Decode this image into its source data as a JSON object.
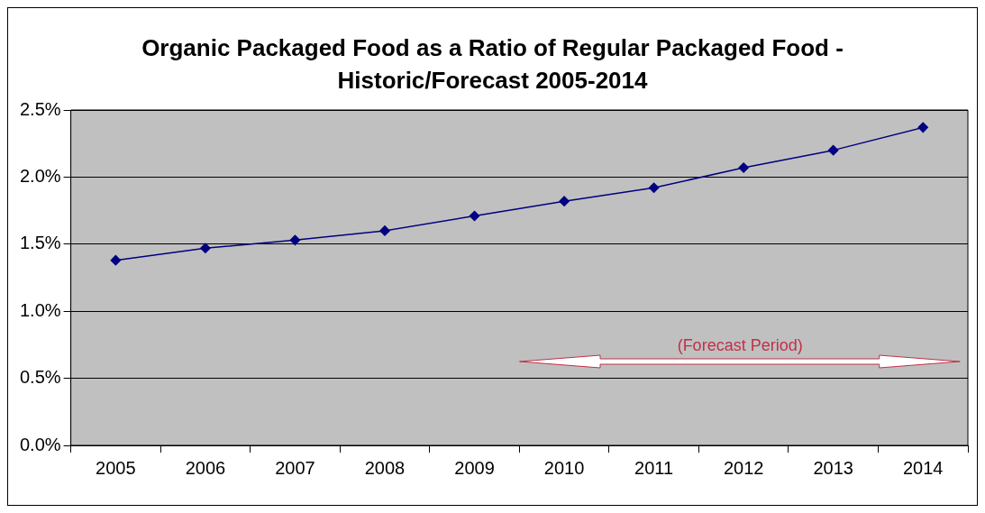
{
  "chart_data": {
    "type": "line",
    "title": "Organic Packaged Food as a Ratio of Regular Packaged Food - Historic/Forecast 2005-2014",
    "categories": [
      "2005",
      "2006",
      "2007",
      "2008",
      "2009",
      "2010",
      "2011",
      "2012",
      "2013",
      "2014"
    ],
    "series": [
      {
        "color": "#000080",
        "values": [
          1.38,
          1.47,
          1.53,
          1.6,
          1.71,
          1.82,
          1.92,
          2.07,
          2.2,
          2.37
        ]
      }
    ],
    "ylim": [
      0,
      2.5
    ],
    "yticks": [
      {
        "value": 0,
        "label": "0.0%"
      },
      {
        "value": 0.5,
        "label": "0.5%"
      },
      {
        "value": 1,
        "label": "1.0%"
      },
      {
        "value": 1.5,
        "label": "1.5%"
      },
      {
        "value": 2,
        "label": "2.0%"
      },
      {
        "value": 2.5,
        "label": "2.5%"
      }
    ],
    "annotations": [
      "(Forecast Period)"
    ],
    "grid": "y",
    "legend": false,
    "marker": "diamond",
    "line_style": "solid"
  }
}
